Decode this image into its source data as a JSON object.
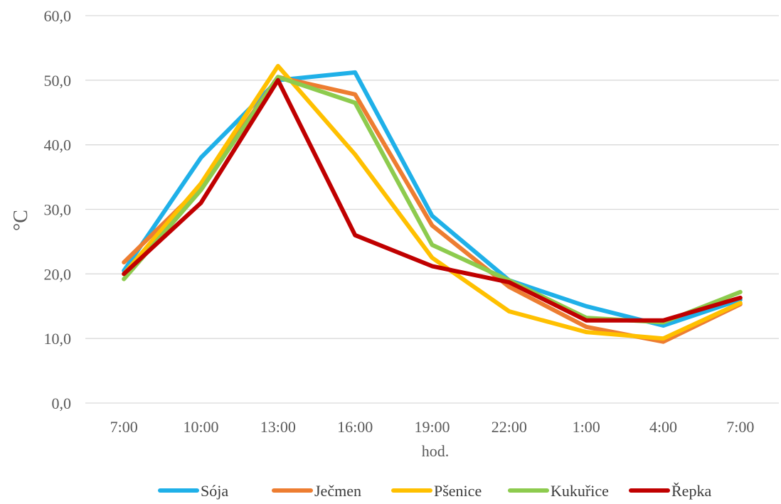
{
  "chart_data": {
    "type": "line",
    "title": "",
    "xlabel": "hod.",
    "ylabel": "°C",
    "ylim": [
      0,
      60
    ],
    "yticks": [
      "0,0",
      "10,0",
      "20,0",
      "30,0",
      "40,0",
      "50,0",
      "60,0"
    ],
    "ytick_values": [
      0,
      10,
      20,
      30,
      40,
      50,
      60
    ],
    "categories": [
      "7:00",
      "10:00",
      "13:00",
      "16:00",
      "19:00",
      "22:00",
      "1:00",
      "4:00",
      "7:00"
    ],
    "grid": true,
    "legend_position": "bottom",
    "series": [
      {
        "name": "Sója",
        "color": "#1fb0e8",
        "values": [
          20.5,
          38.0,
          50.0,
          51.2,
          29.0,
          19.0,
          15.0,
          12.0,
          16.0
        ]
      },
      {
        "name": "Ječmen",
        "color": "#ed7d31",
        "values": [
          21.8,
          33.5,
          50.5,
          47.8,
          27.5,
          18.0,
          11.8,
          9.5,
          15.3
        ]
      },
      {
        "name": "Pšenice",
        "color": "#ffc000",
        "values": [
          20.0,
          34.0,
          52.2,
          38.5,
          22.5,
          14.2,
          11.0,
          10.0,
          15.5
        ]
      },
      {
        "name": "Kukuřice",
        "color": "#8dcb4e",
        "values": [
          19.2,
          33.0,
          50.5,
          46.5,
          24.5,
          19.0,
          13.2,
          12.5,
          17.2
        ]
      },
      {
        "name": "Řepka",
        "color": "#c00000",
        "values": [
          20.0,
          31.0,
          50.0,
          26.0,
          21.2,
          18.7,
          12.8,
          12.8,
          16.3
        ]
      }
    ]
  }
}
